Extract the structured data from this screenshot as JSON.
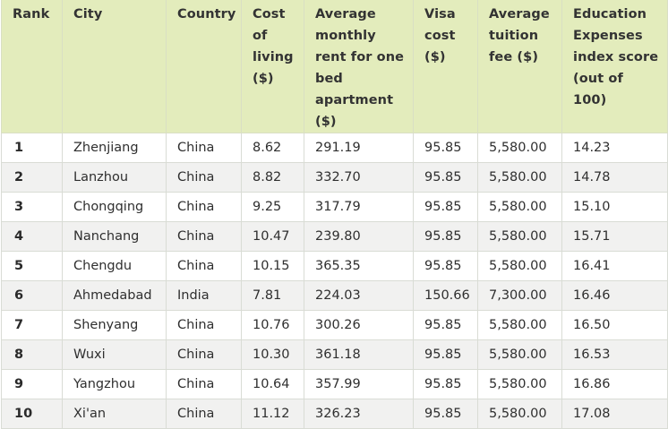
{
  "table": {
    "headers": [
      "Rank",
      "City",
      "Country",
      "Cost of living ($)",
      "Average monthly rent for one bed apartment ($)",
      "Visa cost ($)",
      "Average tuition fee ($)",
      "Education Expenses index score (out of 100)"
    ],
    "rows": [
      [
        "1",
        "Zhenjiang",
        "China",
        "8.62",
        "291.19",
        "95.85",
        "5,580.00",
        "14.23"
      ],
      [
        "2",
        "Lanzhou",
        "China",
        "8.82",
        "332.70",
        "95.85",
        "5,580.00",
        "14.78"
      ],
      [
        "3",
        "Chongqing",
        "China",
        "9.25",
        "317.79",
        "95.85",
        "5,580.00",
        "15.10"
      ],
      [
        "4",
        "Nanchang",
        "China",
        "10.47",
        "239.80",
        "95.85",
        "5,580.00",
        "15.71"
      ],
      [
        "5",
        "Chengdu",
        "China",
        "10.15",
        "365.35",
        "95.85",
        "5,580.00",
        "16.41"
      ],
      [
        "6",
        "Ahmedabad",
        "India",
        "7.81",
        "224.03",
        "150.66",
        "7,300.00",
        "16.46"
      ],
      [
        "7",
        "Shenyang",
        "China",
        "10.76",
        "300.26",
        "95.85",
        "5,580.00",
        "16.50"
      ],
      [
        "8",
        "Wuxi",
        "China",
        "10.30",
        "361.18",
        "95.85",
        "5,580.00",
        "16.53"
      ],
      [
        "9",
        "Yangzhou",
        "China",
        "10.64",
        "357.99",
        "95.85",
        "5,580.00",
        "16.86"
      ],
      [
        "10",
        "Xi'an",
        "China",
        "11.12",
        "326.23",
        "95.85",
        "5,580.00",
        "17.08"
      ]
    ]
  },
  "colors": {
    "header_background": "#e3ecbc",
    "stripe_background": "#f1f1f0",
    "border": "#d9dcd5"
  }
}
